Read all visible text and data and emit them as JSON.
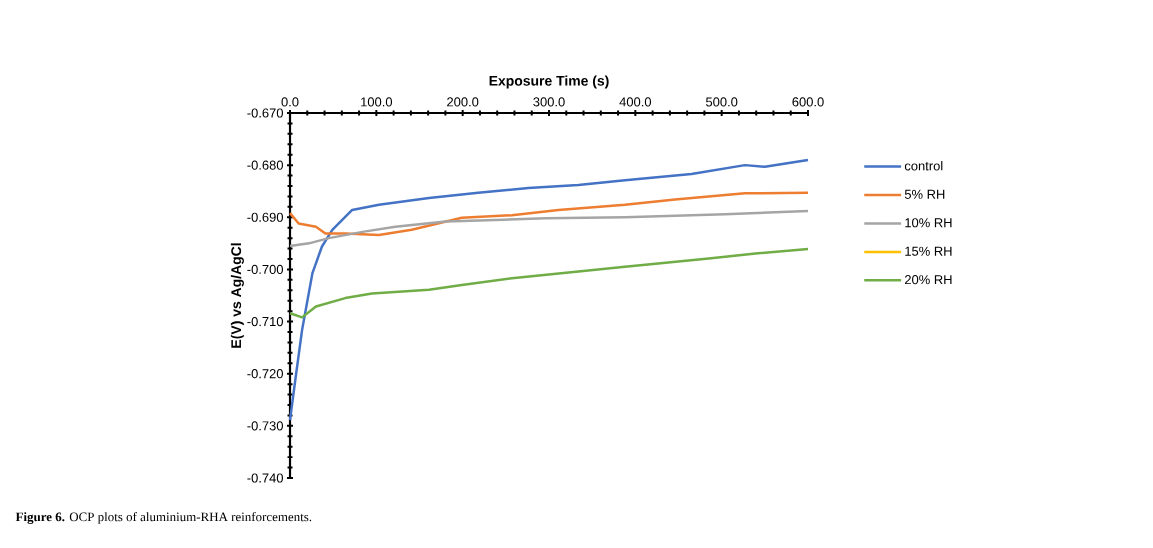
{
  "chart_data": {
    "type": "line",
    "xlabel": "Exposure Time (s)",
    "ylabel": "E(V) vs Ag/AgCl",
    "annotations": [
      "**Figure 6.** OCP plots of aluminium-RHA reinforcements."
    ],
    "xlim": [
      0,
      600
    ],
    "ylim": [
      -0.74,
      -0.67
    ],
    "xticks": [
      {
        "value": 0,
        "label": "0.0"
      },
      {
        "value": 100,
        "label": "100.0"
      },
      {
        "value": 200,
        "label": "200.0"
      },
      {
        "value": 300,
        "label": "300.0"
      },
      {
        "value": 400,
        "label": "400.0"
      },
      {
        "value": 500,
        "label": "500.0"
      },
      {
        "value": 600,
        "label": "600.0"
      }
    ],
    "yticks": [
      {
        "value": -0.67,
        "label": "-0.670"
      },
      {
        "value": -0.68,
        "label": "-0.680"
      },
      {
        "value": -0.69,
        "label": "-0.690"
      },
      {
        "value": -0.7,
        "label": "-0.700"
      },
      {
        "value": -0.71,
        "label": "-0.710"
      },
      {
        "value": -0.72,
        "label": "-0.720"
      },
      {
        "value": -0.73,
        "label": "-0.730"
      },
      {
        "value": -0.74,
        "label": "-0.740"
      }
    ],
    "legend": "right",
    "grid": false,
    "series": [
      {
        "name": "control",
        "color": "#4472c4",
        "x": [
          0,
          6.6,
          14,
          26,
          37,
          49,
          72,
          103,
          161,
          218,
          276,
          334,
          388,
          465,
          527,
          550,
          600
        ],
        "values": [
          -0.7289,
          -0.7206,
          -0.7116,
          -0.7007,
          -0.6956,
          -0.6924,
          -0.6886,
          -0.6876,
          -0.6863,
          -0.6853,
          -0.6844,
          -0.6838,
          -0.6829,
          -0.6817,
          -0.68,
          -0.6803,
          -0.679
        ]
      },
      {
        "name": "5% RH",
        "color": "#ed7d31",
        "x": [
          0,
          10,
          30,
          41,
          64,
          103,
          141,
          199,
          257,
          311,
          388,
          446,
          527,
          600
        ],
        "values": [
          -0.6892,
          -0.6912,
          -0.6918,
          -0.6931,
          -0.6931,
          -0.6934,
          -0.6924,
          -0.6901,
          -0.6896,
          -0.6886,
          -0.6876,
          -0.6866,
          -0.6854,
          -0.6853
        ]
      },
      {
        "name": "10% RH",
        "color": "#a5a5a5",
        "x": [
          0,
          22,
          45,
          84,
          122,
          180,
          238,
          296,
          388,
          504,
          600
        ],
        "values": [
          -0.6955,
          -0.695,
          -0.694,
          -0.6928,
          -0.6918,
          -0.6908,
          -0.6905,
          -0.6902,
          -0.69,
          -0.6894,
          -0.6888
        ]
      },
      {
        "name": "15% RH",
        "color": "#ffc000"
      },
      {
        "name": "20% RH",
        "color": "#70ad47",
        "x": [
          0,
          14,
          30,
          64,
          95,
          161,
          199,
          257,
          334,
          388,
          485,
          542,
          600
        ],
        "values": [
          -0.7084,
          -0.7092,
          -0.7071,
          -0.7055,
          -0.7046,
          -0.7039,
          -0.703,
          -0.7017,
          -0.7004,
          -0.6995,
          -0.6979,
          -0.6969,
          -0.6961
        ]
      }
    ]
  }
}
